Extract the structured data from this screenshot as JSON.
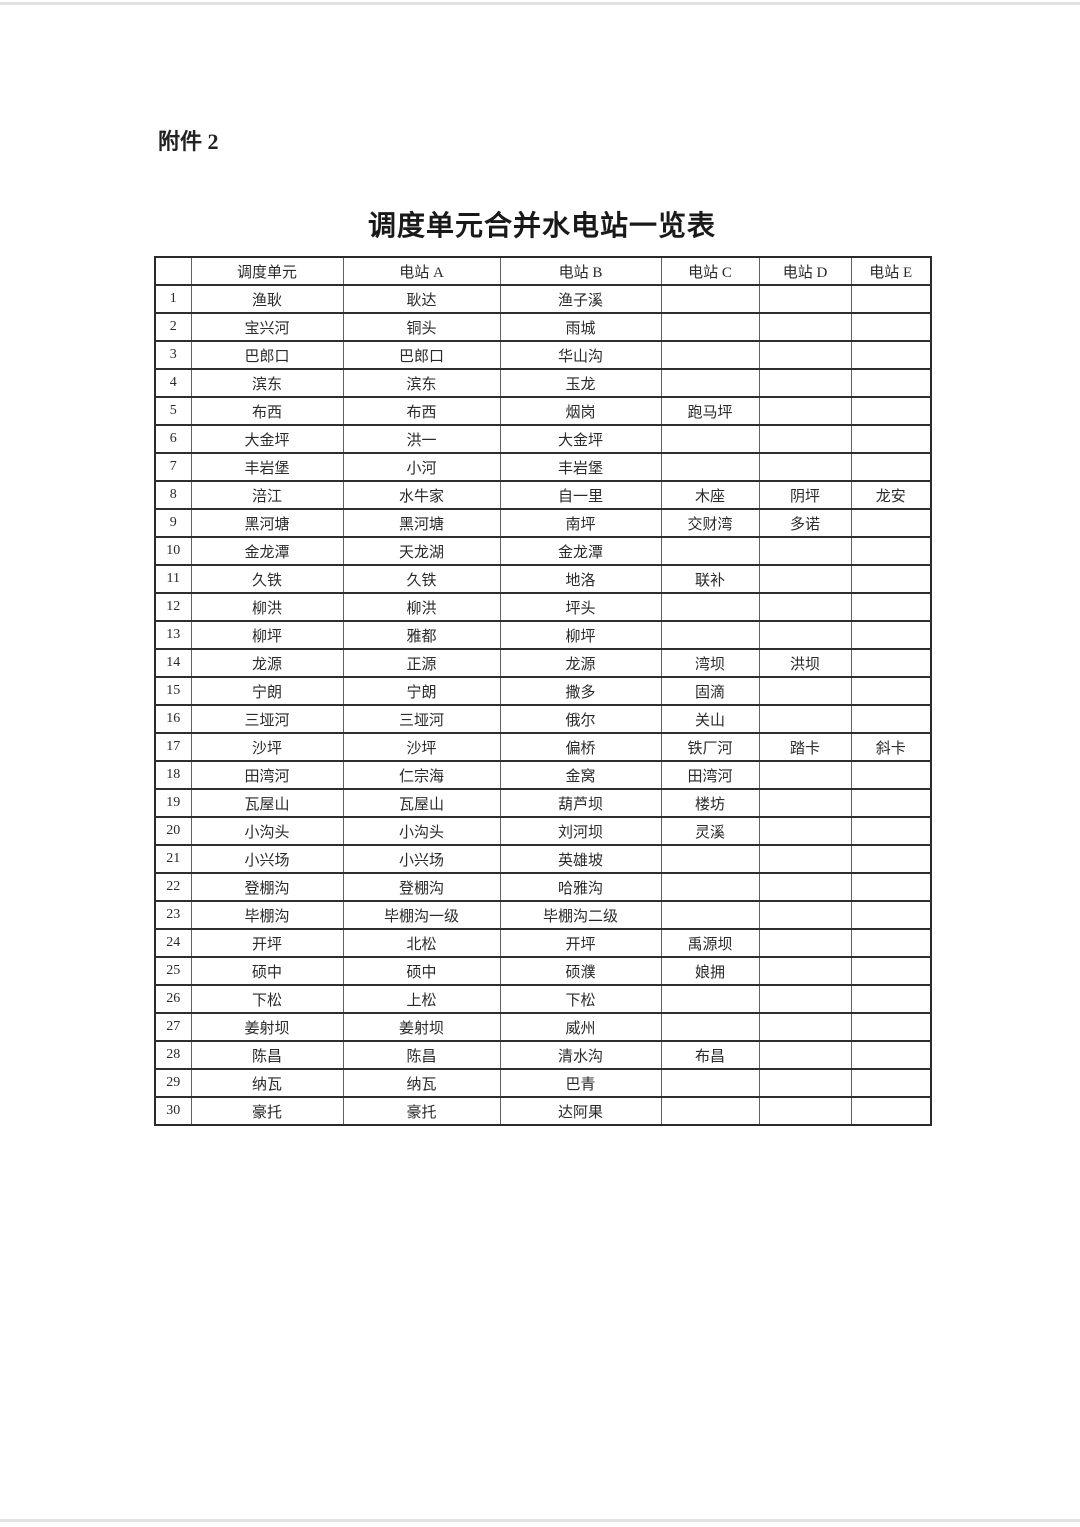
{
  "doc": {
    "attachment_label": "附件 2",
    "title": "调度单元合并水电站一览表"
  },
  "table": {
    "corner": "",
    "headers": [
      "调度单元",
      "电站 A",
      "电站 B",
      "电站 C",
      "电站 D",
      "电站 E"
    ],
    "rows": [
      {
        "num": "1",
        "cells": [
          "渔耿",
          "耿达",
          "渔子溪",
          "",
          "",
          ""
        ]
      },
      {
        "num": "2",
        "cells": [
          "宝兴河",
          "铜头",
          "雨城",
          "",
          "",
          ""
        ]
      },
      {
        "num": "3",
        "cells": [
          "巴郎口",
          "巴郎口",
          "华山沟",
          "",
          "",
          ""
        ]
      },
      {
        "num": "4",
        "cells": [
          "滨东",
          "滨东",
          "玉龙",
          "",
          "",
          ""
        ]
      },
      {
        "num": "5",
        "cells": [
          "布西",
          "布西",
          "烟岗",
          "跑马坪",
          "",
          ""
        ]
      },
      {
        "num": "6",
        "cells": [
          "大金坪",
          "洪一",
          "大金坪",
          "",
          "",
          ""
        ]
      },
      {
        "num": "7",
        "cells": [
          "丰岩堡",
          "小河",
          "丰岩堡",
          "",
          "",
          ""
        ]
      },
      {
        "num": "8",
        "cells": [
          "涪江",
          "水牛家",
          "自一里",
          "木座",
          "阴坪",
          "龙安"
        ]
      },
      {
        "num": "9",
        "cells": [
          "黑河塘",
          "黑河塘",
          "南坪",
          "交财湾",
          "多诺",
          ""
        ]
      },
      {
        "num": "10",
        "cells": [
          "金龙潭",
          "天龙湖",
          "金龙潭",
          "",
          "",
          ""
        ]
      },
      {
        "num": "11",
        "cells": [
          "久铁",
          "久铁",
          "地洛",
          "联补",
          "",
          ""
        ]
      },
      {
        "num": "12",
        "cells": [
          "柳洪",
          "柳洪",
          "坪头",
          "",
          "",
          ""
        ]
      },
      {
        "num": "13",
        "cells": [
          "柳坪",
          "雅都",
          "柳坪",
          "",
          "",
          ""
        ]
      },
      {
        "num": "14",
        "cells": [
          "龙源",
          "正源",
          "龙源",
          "湾坝",
          "洪坝",
          ""
        ]
      },
      {
        "num": "15",
        "cells": [
          "宁朗",
          "宁朗",
          "撒多",
          "固滴",
          "",
          ""
        ]
      },
      {
        "num": "16",
        "cells": [
          "三垭河",
          "三垭河",
          "俄尔",
          "关山",
          "",
          ""
        ]
      },
      {
        "num": "17",
        "cells": [
          "沙坪",
          "沙坪",
          "偏桥",
          "铁厂河",
          "踏卡",
          "斜卡"
        ]
      },
      {
        "num": "18",
        "cells": [
          "田湾河",
          "仁宗海",
          "金窝",
          "田湾河",
          "",
          ""
        ]
      },
      {
        "num": "19",
        "cells": [
          "瓦屋山",
          "瓦屋山",
          "葫芦坝",
          "楼坊",
          "",
          ""
        ]
      },
      {
        "num": "20",
        "cells": [
          "小沟头",
          "小沟头",
          "刘河坝",
          "灵溪",
          "",
          ""
        ]
      },
      {
        "num": "21",
        "cells": [
          "小兴场",
          "小兴场",
          "英雄坡",
          "",
          "",
          ""
        ]
      },
      {
        "num": "22",
        "cells": [
          "登棚沟",
          "登棚沟",
          "哈雅沟",
          "",
          "",
          ""
        ]
      },
      {
        "num": "23",
        "cells": [
          "毕棚沟",
          "毕棚沟一级",
          "毕棚沟二级",
          "",
          "",
          ""
        ]
      },
      {
        "num": "24",
        "cells": [
          "开坪",
          "北松",
          "开坪",
          "禹源坝",
          "",
          ""
        ]
      },
      {
        "num": "25",
        "cells": [
          "硕中",
          "硕中",
          "硕濮",
          "娘拥",
          "",
          ""
        ]
      },
      {
        "num": "26",
        "cells": [
          "下松",
          "上松",
          "下松",
          "",
          "",
          ""
        ]
      },
      {
        "num": "27",
        "cells": [
          "姜射坝",
          "姜射坝",
          "威州",
          "",
          "",
          ""
        ]
      },
      {
        "num": "28",
        "cells": [
          "陈昌",
          "陈昌",
          "清水沟",
          "布昌",
          "",
          ""
        ]
      },
      {
        "num": "29",
        "cells": [
          "纳瓦",
          "纳瓦",
          "巴青",
          "",
          "",
          ""
        ]
      },
      {
        "num": "30",
        "cells": [
          "豪托",
          "豪托",
          "达阿果",
          "",
          "",
          ""
        ]
      }
    ]
  }
}
